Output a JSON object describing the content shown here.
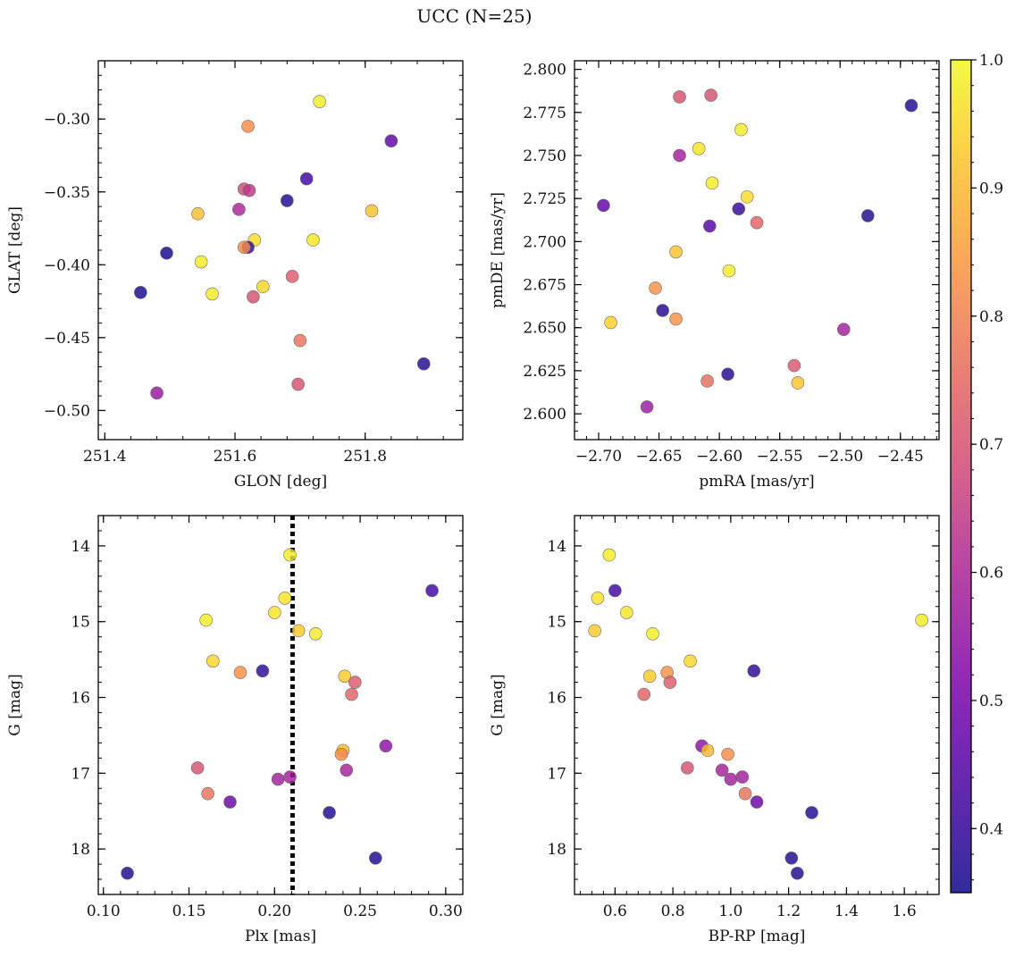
{
  "figure": {
    "title": "UCC (N=25)"
  },
  "colorbar": {
    "colormap": "plasma",
    "range": [
      0.35,
      1.0
    ],
    "tick_labels": [
      "0.4",
      "0.5",
      "0.6",
      "0.7",
      "0.8",
      "0.9",
      "1.0"
    ],
    "tick_values": [
      0.4,
      0.5,
      0.6,
      0.7,
      0.8,
      0.9,
      1.0
    ]
  },
  "chart_data": [
    {
      "type": "scatter",
      "xlabel": "GLON [deg]",
      "ylabel": "GLAT [deg]",
      "xlim": [
        251.39,
        251.95
      ],
      "ylim": [
        -0.52,
        -0.26
      ],
      "yinvert": false,
      "xticks": [
        251.4,
        251.6,
        251.8
      ],
      "xtick_labels": [
        "251.4",
        "251.6",
        "251.8"
      ],
      "yticks": [
        -0.3,
        -0.35,
        -0.4,
        -0.45,
        -0.5
      ],
      "ytick_labels": [
        "−0.30",
        "−0.35",
        "−0.40",
        "−0.45",
        "−0.50"
      ],
      "points": [
        {
          "x": 251.73,
          "y": -0.288,
          "c": 0.98
        },
        {
          "x": 251.62,
          "y": -0.305,
          "c": 0.82
        },
        {
          "x": 251.84,
          "y": -0.315,
          "c": 0.46
        },
        {
          "x": 251.71,
          "y": -0.341,
          "c": 0.42
        },
        {
          "x": 251.614,
          "y": -0.348,
          "c": 0.68
        },
        {
          "x": 251.622,
          "y": -0.349,
          "c": 0.64
        },
        {
          "x": 251.68,
          "y": -0.356,
          "c": 0.37
        },
        {
          "x": 251.543,
          "y": -0.365,
          "c": 0.91
        },
        {
          "x": 251.81,
          "y": -0.363,
          "c": 0.92
        },
        {
          "x": 251.606,
          "y": -0.362,
          "c": 0.6
        },
        {
          "x": 251.72,
          "y": -0.383,
          "c": 0.97
        },
        {
          "x": 251.63,
          "y": -0.383,
          "c": 0.96
        },
        {
          "x": 251.62,
          "y": -0.388,
          "c": 0.4
        },
        {
          "x": 251.614,
          "y": -0.388,
          "c": 0.82
        },
        {
          "x": 251.495,
          "y": -0.392,
          "c": 0.36
        },
        {
          "x": 251.548,
          "y": -0.398,
          "c": 0.98
        },
        {
          "x": 251.688,
          "y": -0.408,
          "c": 0.72
        },
        {
          "x": 251.643,
          "y": -0.415,
          "c": 0.95
        },
        {
          "x": 251.455,
          "y": -0.419,
          "c": 0.36
        },
        {
          "x": 251.565,
          "y": -0.42,
          "c": 0.98
        },
        {
          "x": 251.628,
          "y": -0.422,
          "c": 0.7
        },
        {
          "x": 251.7,
          "y": -0.452,
          "c": 0.77
        },
        {
          "x": 251.89,
          "y": -0.468,
          "c": 0.38
        },
        {
          "x": 251.697,
          "y": -0.482,
          "c": 0.7
        },
        {
          "x": 251.48,
          "y": -0.488,
          "c": 0.56
        }
      ]
    },
    {
      "type": "scatter",
      "xlabel": "pmRA [mas/yr]",
      "ylabel": "pmDE [mas/yr]",
      "xlim": [
        -2.72,
        -2.418
      ],
      "ylim": [
        2.585,
        2.805
      ],
      "yinvert": false,
      "xticks": [
        -2.7,
        -2.65,
        -2.6,
        -2.55,
        -2.5,
        -2.45
      ],
      "xtick_labels": [
        "−2.70",
        "−2.65",
        "−2.60",
        "−2.55",
        "−2.50",
        "−2.45"
      ],
      "yticks": [
        2.6,
        2.625,
        2.65,
        2.675,
        2.7,
        2.725,
        2.75,
        2.775,
        2.8
      ],
      "ytick_labels": [
        "2.600",
        "2.625",
        "2.650",
        "2.675",
        "2.700",
        "2.725",
        "2.750",
        "2.775",
        "2.800"
      ],
      "points": [
        {
          "x": -2.633,
          "y": 2.784,
          "c": 0.7
        },
        {
          "x": -2.607,
          "y": 2.785,
          "c": 0.7
        },
        {
          "x": -2.441,
          "y": 2.779,
          "c": 0.37
        },
        {
          "x": -2.582,
          "y": 2.765,
          "c": 0.98
        },
        {
          "x": -2.617,
          "y": 2.754,
          "c": 0.97
        },
        {
          "x": -2.633,
          "y": 2.75,
          "c": 0.58
        },
        {
          "x": -2.606,
          "y": 2.734,
          "c": 0.98
        },
        {
          "x": -2.577,
          "y": 2.726,
          "c": 0.96
        },
        {
          "x": -2.696,
          "y": 2.721,
          "c": 0.46
        },
        {
          "x": -2.584,
          "y": 2.719,
          "c": 0.4
        },
        {
          "x": -2.477,
          "y": 2.715,
          "c": 0.37
        },
        {
          "x": -2.569,
          "y": 2.711,
          "c": 0.74
        },
        {
          "x": -2.608,
          "y": 2.709,
          "c": 0.44
        },
        {
          "x": -2.636,
          "y": 2.694,
          "c": 0.92
        },
        {
          "x": -2.592,
          "y": 2.683,
          "c": 0.98
        },
        {
          "x": -2.653,
          "y": 2.673,
          "c": 0.83
        },
        {
          "x": -2.647,
          "y": 2.66,
          "c": 0.38
        },
        {
          "x": -2.636,
          "y": 2.655,
          "c": 0.83
        },
        {
          "x": -2.69,
          "y": 2.653,
          "c": 0.94
        },
        {
          "x": -2.497,
          "y": 2.649,
          "c": 0.58
        },
        {
          "x": -2.538,
          "y": 2.628,
          "c": 0.71
        },
        {
          "x": -2.593,
          "y": 2.623,
          "c": 0.38
        },
        {
          "x": -2.61,
          "y": 2.619,
          "c": 0.76
        },
        {
          "x": -2.535,
          "y": 2.618,
          "c": 0.92
        },
        {
          "x": -2.66,
          "y": 2.604,
          "c": 0.57
        }
      ]
    },
    {
      "type": "scatter",
      "xlabel": "Plx [mas]",
      "ylabel": "G [mag]",
      "xlim": [
        0.097,
        0.31
      ],
      "ylim": [
        13.6,
        18.6
      ],
      "yinvert": true,
      "xticks": [
        0.1,
        0.15,
        0.2,
        0.25,
        0.3
      ],
      "xtick_labels": [
        "0.10",
        "0.15",
        "0.20",
        "0.25",
        "0.30"
      ],
      "yticks": [
        14,
        15,
        16,
        17,
        18
      ],
      "ytick_labels": [
        "14",
        "15",
        "16",
        "17",
        "18"
      ],
      "vline": {
        "x": 0.2105,
        "style": "dotted"
      },
      "points": [
        {
          "x": 0.209,
          "y": 14.12,
          "c": 0.98
        },
        {
          "x": 0.292,
          "y": 14.59,
          "c": 0.42
        },
        {
          "x": 0.206,
          "y": 14.69,
          "c": 0.97
        },
        {
          "x": 0.2,
          "y": 14.88,
          "c": 0.97
        },
        {
          "x": 0.16,
          "y": 14.98,
          "c": 0.98
        },
        {
          "x": 0.214,
          "y": 15.12,
          "c": 0.93
        },
        {
          "x": 0.224,
          "y": 15.16,
          "c": 0.98
        },
        {
          "x": 0.164,
          "y": 15.52,
          "c": 0.95
        },
        {
          "x": 0.18,
          "y": 15.67,
          "c": 0.83
        },
        {
          "x": 0.193,
          "y": 15.65,
          "c": 0.39
        },
        {
          "x": 0.241,
          "y": 15.72,
          "c": 0.93
        },
        {
          "x": 0.247,
          "y": 15.8,
          "c": 0.72
        },
        {
          "x": 0.245,
          "y": 15.96,
          "c": 0.74
        },
        {
          "x": 0.265,
          "y": 16.64,
          "c": 0.54
        },
        {
          "x": 0.24,
          "y": 16.7,
          "c": 0.9
        },
        {
          "x": 0.239,
          "y": 16.75,
          "c": 0.82
        },
        {
          "x": 0.155,
          "y": 16.93,
          "c": 0.7
        },
        {
          "x": 0.242,
          "y": 16.96,
          "c": 0.59
        },
        {
          "x": 0.209,
          "y": 17.05,
          "c": 0.58
        },
        {
          "x": 0.202,
          "y": 17.08,
          "c": 0.58
        },
        {
          "x": 0.161,
          "y": 17.27,
          "c": 0.77
        },
        {
          "x": 0.174,
          "y": 17.38,
          "c": 0.48
        },
        {
          "x": 0.232,
          "y": 17.52,
          "c": 0.37
        },
        {
          "x": 0.259,
          "y": 18.12,
          "c": 0.37
        },
        {
          "x": 0.114,
          "y": 18.32,
          "c": 0.37
        }
      ]
    },
    {
      "type": "scatter",
      "xlabel": "BP-RP [mag]",
      "ylabel": "G [mag]",
      "xlim": [
        0.46,
        1.72
      ],
      "ylim": [
        13.6,
        18.6
      ],
      "yinvert": true,
      "xticks": [
        0.6,
        0.8,
        1.0,
        1.2,
        1.4,
        1.6
      ],
      "xtick_labels": [
        "0.6",
        "0.8",
        "1.0",
        "1.2",
        "1.4",
        "1.6"
      ],
      "yticks": [
        14,
        15,
        16,
        17,
        18
      ],
      "ytick_labels": [
        "14",
        "15",
        "16",
        "17",
        "18"
      ],
      "points": [
        {
          "x": 0.58,
          "y": 14.12,
          "c": 0.98
        },
        {
          "x": 0.6,
          "y": 14.59,
          "c": 0.42
        },
        {
          "x": 0.54,
          "y": 14.69,
          "c": 0.97
        },
        {
          "x": 0.64,
          "y": 14.88,
          "c": 0.97
        },
        {
          "x": 1.66,
          "y": 14.98,
          "c": 0.98
        },
        {
          "x": 0.53,
          "y": 15.12,
          "c": 0.93
        },
        {
          "x": 0.73,
          "y": 15.16,
          "c": 0.98
        },
        {
          "x": 0.86,
          "y": 15.52,
          "c": 0.95
        },
        {
          "x": 0.78,
          "y": 15.67,
          "c": 0.83
        },
        {
          "x": 1.08,
          "y": 15.65,
          "c": 0.39
        },
        {
          "x": 0.72,
          "y": 15.72,
          "c": 0.93
        },
        {
          "x": 0.79,
          "y": 15.8,
          "c": 0.72
        },
        {
          "x": 0.7,
          "y": 15.96,
          "c": 0.74
        },
        {
          "x": 0.9,
          "y": 16.64,
          "c": 0.54
        },
        {
          "x": 0.92,
          "y": 16.7,
          "c": 0.9
        },
        {
          "x": 0.99,
          "y": 16.75,
          "c": 0.82
        },
        {
          "x": 0.85,
          "y": 16.93,
          "c": 0.7
        },
        {
          "x": 0.97,
          "y": 16.96,
          "c": 0.59
        },
        {
          "x": 1.04,
          "y": 17.05,
          "c": 0.58
        },
        {
          "x": 1.0,
          "y": 17.08,
          "c": 0.58
        },
        {
          "x": 1.05,
          "y": 17.27,
          "c": 0.77
        },
        {
          "x": 1.09,
          "y": 17.38,
          "c": 0.48
        },
        {
          "x": 1.28,
          "y": 17.52,
          "c": 0.37
        },
        {
          "x": 1.21,
          "y": 18.12,
          "c": 0.37
        },
        {
          "x": 1.23,
          "y": 18.32,
          "c": 0.37
        }
      ]
    }
  ]
}
